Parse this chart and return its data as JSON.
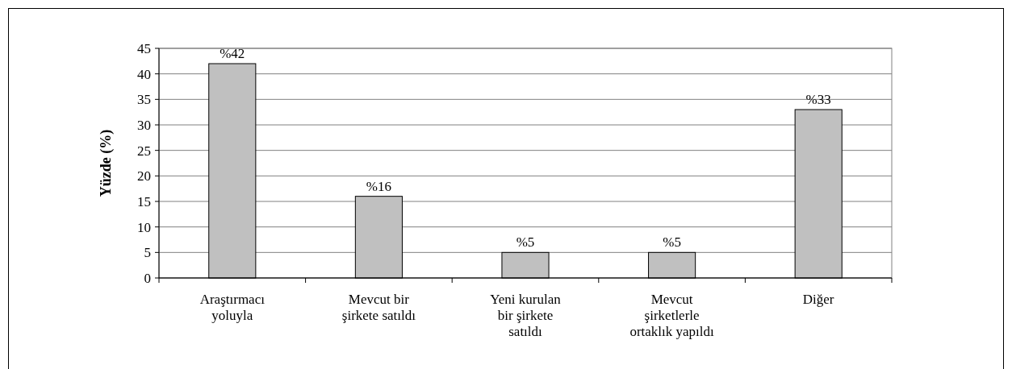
{
  "chart_data": {
    "type": "bar",
    "ylabel": "Yüzde (%)",
    "categories": [
      "Araştırmacı\nyoluyla",
      "Mevcut bir\nşirkete satıldı",
      "Yeni kurulan\nbir şirkete\nsatıldı",
      "Mevcut\nşirketlerle\nortaklık yapıldı",
      "Diğer"
    ],
    "values": [
      42,
      16,
      5,
      5,
      33
    ],
    "value_labels": [
      "%42",
      "%16",
      "%5",
      "%5",
      "%33"
    ],
    "color": "#c0c0c0",
    "ylim": [
      0,
      45
    ],
    "yticks": [
      0,
      5,
      10,
      15,
      20,
      25,
      30,
      35,
      40,
      45
    ],
    "grid": "y"
  }
}
